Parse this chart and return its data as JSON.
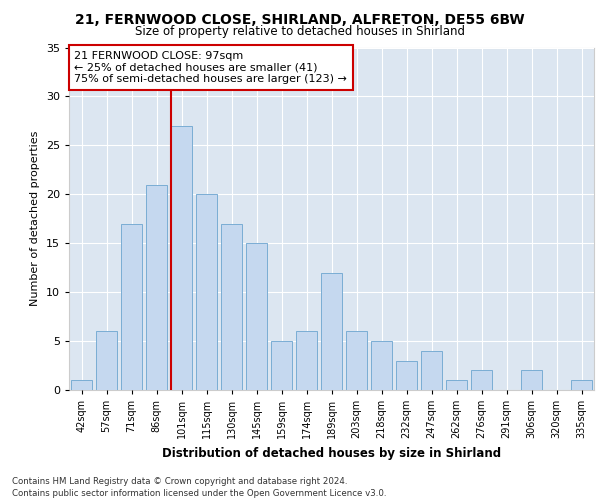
{
  "title1": "21, FERNWOOD CLOSE, SHIRLAND, ALFRETON, DE55 6BW",
  "title2": "Size of property relative to detached houses in Shirland",
  "xlabel": "Distribution of detached houses by size in Shirland",
  "ylabel": "Number of detached properties",
  "categories": [
    "42sqm",
    "57sqm",
    "71sqm",
    "86sqm",
    "101sqm",
    "115sqm",
    "130sqm",
    "145sqm",
    "159sqm",
    "174sqm",
    "189sqm",
    "203sqm",
    "218sqm",
    "232sqm",
    "247sqm",
    "262sqm",
    "276sqm",
    "291sqm",
    "306sqm",
    "320sqm",
    "335sqm"
  ],
  "values": [
    1,
    6,
    17,
    21,
    27,
    20,
    17,
    15,
    5,
    6,
    12,
    6,
    5,
    3,
    4,
    1,
    2,
    0,
    2,
    0,
    1
  ],
  "bar_color": "#c5d8ef",
  "bar_edge_color": "#7aadd4",
  "vline_color": "#cc0000",
  "annotation_text": "21 FERNWOOD CLOSE: 97sqm\n← 25% of detached houses are smaller (41)\n75% of semi-detached houses are larger (123) →",
  "annotation_box_color": "#ffffff",
  "annotation_box_edge": "#cc0000",
  "ylim": [
    0,
    35
  ],
  "yticks": [
    0,
    5,
    10,
    15,
    20,
    25,
    30,
    35
  ],
  "footer1": "Contains HM Land Registry data © Crown copyright and database right 2024.",
  "footer2": "Contains public sector information licensed under the Open Government Licence v3.0.",
  "bg_color": "#ffffff",
  "plot_bg_color": "#dce6f1",
  "grid_color": "#ffffff"
}
